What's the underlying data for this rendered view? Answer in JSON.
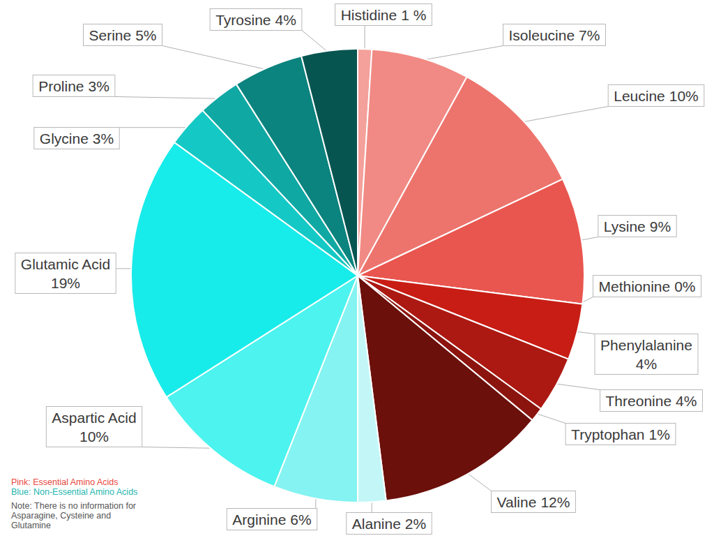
{
  "chart_data": {
    "type": "pie",
    "categories": [
      "Histidine",
      "Isoleucine",
      "Leucine",
      "Lysine",
      "Methionine",
      "Phenylalanine",
      "Threonine",
      "Tryptophan",
      "Valine",
      "Alanine",
      "Arginine",
      "Aspartic Acid",
      "Glutamic Acid",
      "Glycine",
      "Proline",
      "Serine",
      "Tyrosine"
    ],
    "values": [
      1,
      7,
      10,
      9,
      0,
      4,
      4,
      1,
      12,
      2,
      6,
      10,
      19,
      3,
      3,
      5,
      4
    ],
    "value_labels": [
      "1 %",
      "7%",
      "10%",
      "9%",
      "0%",
      "4%",
      "4%",
      "1%",
      "12%",
      "2%",
      "6%",
      "10%",
      "19%",
      "3%",
      "3%",
      "5%",
      "4%"
    ],
    "colors": [
      "#f4a09b",
      "#f18a84",
      "#ed746d",
      "#e9564f",
      "#dc3a31",
      "#c81d15",
      "#ac1912",
      "#8c140e",
      "#6b100b",
      "#c3f7f7",
      "#84f3f1",
      "#4cf3ef",
      "#18ecea",
      "#14c9c5",
      "#10a8a3",
      "#0b837e",
      "#075551"
    ],
    "data_labels": true,
    "annotations": [
      "Pink: Essential Amino Acids",
      "Blue: Non-Essential Amino Acids",
      "Note: There is no information for Asparagine, Cysteine and Glutamine"
    ]
  }
}
